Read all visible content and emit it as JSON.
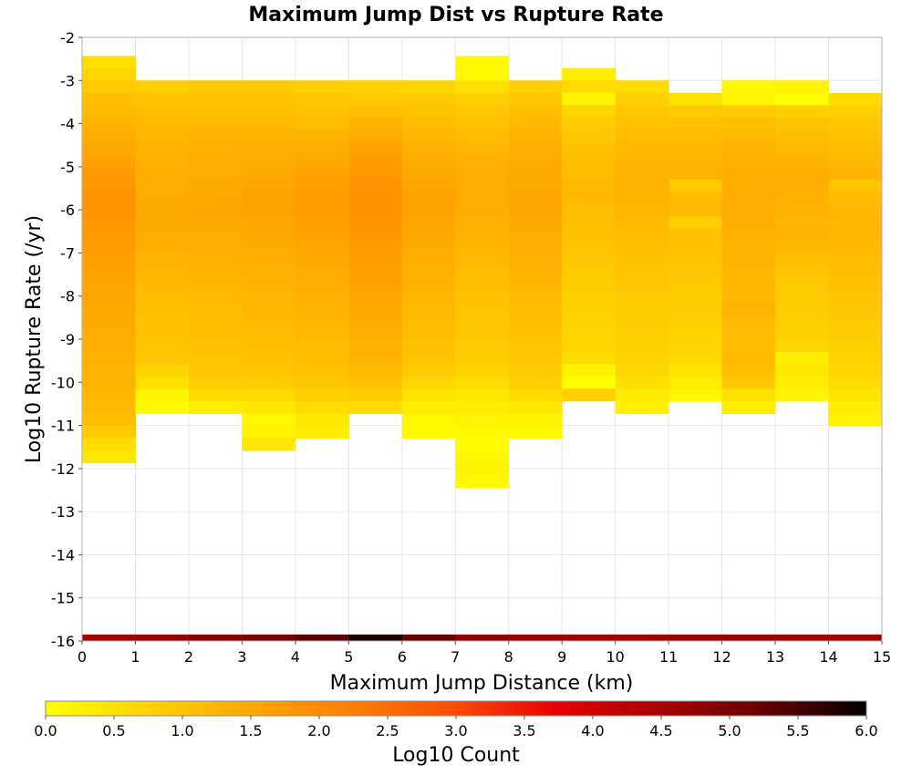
{
  "chart_data": {
    "type": "heatmap",
    "title": "Maximum Jump Dist vs Rupture Rate",
    "xlabel": "Maximum Jump Distance (km)",
    "ylabel": "Log10 Rupture Rate (/yr)",
    "xlim": [
      0,
      15
    ],
    "ylim": [
      -16,
      -2
    ],
    "x_ticks": [
      "0",
      "1",
      "2",
      "3",
      "4",
      "5",
      "6",
      "7",
      "8",
      "9",
      "10",
      "11",
      "12",
      "13",
      "14",
      "15"
    ],
    "y_ticks": [
      "-2",
      "-3",
      "-4",
      "-5",
      "-6",
      "-7",
      "-8",
      "-9",
      "-10",
      "-11",
      "-12",
      "-13",
      "-14",
      "-15",
      "-16"
    ],
    "grid": true,
    "bin_width_x": 1,
    "bin_height_y": 0.286,
    "colorbar": {
      "label": "Log10 Count",
      "range": [
        0,
        6
      ],
      "ticks": [
        "0.0",
        "0.5",
        "1.0",
        "1.5",
        "2.0",
        "2.5",
        "3.0",
        "3.5",
        "4.0",
        "4.5",
        "5.0",
        "5.5",
        "6.0"
      ],
      "stops": [
        "#ffff00",
        "#ffd200",
        "#ffa800",
        "#ff7e00",
        "#ff4a00",
        "#e60000",
        "#a60000",
        "#660000",
        "#000000"
      ],
      "position": "bottom"
    },
    "columns": [
      {
        "x": 0,
        "y_top": -2.43,
        "values": [
          0.55,
          0.7,
          0.9,
          1.1,
          1.2,
          1.3,
          1.4,
          1.5,
          1.6,
          1.75,
          1.8,
          1.85,
          1.85,
          1.8,
          1.75,
          1.7,
          1.65,
          1.6,
          1.55,
          1.55,
          1.5,
          1.5,
          1.45,
          1.4,
          1.35,
          1.3,
          1.3,
          1.25,
          1.2,
          1.1,
          0.9,
          0.55,
          0.4
        ]
      },
      {
        "x": 1,
        "y_top": -3.0,
        "values": [
          0.8,
          1.0,
          1.1,
          1.2,
          1.25,
          1.3,
          1.35,
          1.4,
          1.4,
          1.45,
          1.5,
          1.5,
          1.45,
          1.4,
          1.3,
          1.25,
          1.2,
          1.15,
          1.1,
          1.05,
          1.05,
          1.0,
          0.95,
          0.75,
          0.55,
          0.2,
          0.1
        ]
      },
      {
        "x": 2,
        "y_top": -3.0,
        "values": [
          0.9,
          1.0,
          1.1,
          1.2,
          1.3,
          1.35,
          1.4,
          1.45,
          1.5,
          1.5,
          1.55,
          1.5,
          1.45,
          1.4,
          1.35,
          1.3,
          1.25,
          1.2,
          1.15,
          1.1,
          1.1,
          1.05,
          1.0,
          0.95,
          0.8,
          0.6,
          0.3
        ]
      },
      {
        "x": 3,
        "y_top": -3.0,
        "values": [
          0.9,
          1.0,
          1.1,
          1.2,
          1.3,
          1.4,
          1.45,
          1.5,
          1.55,
          1.6,
          1.6,
          1.55,
          1.5,
          1.45,
          1.4,
          1.35,
          1.3,
          1.25,
          1.25,
          1.2,
          1.15,
          1.1,
          1.05,
          1.0,
          0.85,
          0.65,
          0.4,
          0.15,
          0.2,
          0.4
        ]
      },
      {
        "x": 4,
        "y_top": -3.0,
        "values": [
          0.8,
          0.95,
          1.05,
          1.15,
          1.3,
          1.4,
          1.5,
          1.6,
          1.65,
          1.7,
          1.7,
          1.65,
          1.6,
          1.55,
          1.5,
          1.45,
          1.4,
          1.35,
          1.3,
          1.25,
          1.2,
          1.15,
          1.1,
          1.05,
          0.95,
          0.8,
          0.6,
          0.4,
          0.3
        ]
      },
      {
        "x": 5,
        "y_top": -3.0,
        "values": [
          0.75,
          0.9,
          1.1,
          1.3,
          1.45,
          1.6,
          1.7,
          1.8,
          1.85,
          1.9,
          1.9,
          1.85,
          1.8,
          1.75,
          1.7,
          1.65,
          1.6,
          1.55,
          1.5,
          1.45,
          1.4,
          1.35,
          1.3,
          1.2,
          1.05,
          0.85,
          0.6
        ]
      },
      {
        "x": 6,
        "y_top": -3.0,
        "values": [
          0.7,
          0.9,
          1.0,
          1.15,
          1.25,
          1.35,
          1.45,
          1.5,
          1.55,
          1.6,
          1.6,
          1.55,
          1.5,
          1.45,
          1.4,
          1.35,
          1.3,
          1.25,
          1.2,
          1.15,
          1.1,
          1.05,
          1.0,
          0.9,
          0.7,
          0.45,
          0.3,
          0.15,
          0.1
        ]
      },
      {
        "x": 7,
        "y_top": -2.43,
        "values": [
          0.1,
          0.1,
          0.5,
          0.8,
          0.95,
          1.05,
          1.15,
          1.25,
          1.35,
          1.4,
          1.45,
          1.45,
          1.4,
          1.35,
          1.3,
          1.25,
          1.2,
          1.15,
          1.1,
          1.05,
          1.0,
          0.95,
          0.95,
          0.9,
          0.85,
          0.75,
          0.6,
          0.4,
          0.3,
          0.2,
          0.1,
          0.05,
          0.1,
          0.2,
          0.1
        ]
      },
      {
        "x": 8,
        "y_top": -3.0,
        "values": [
          0.8,
          0.95,
          1.1,
          1.2,
          1.3,
          1.4,
          1.45,
          1.5,
          1.5,
          1.55,
          1.55,
          1.5,
          1.45,
          1.4,
          1.35,
          1.3,
          1.25,
          1.2,
          1.15,
          1.1,
          1.05,
          1.0,
          0.95,
          0.9,
          0.8,
          0.6,
          0.4,
          0.2,
          0.1
        ]
      },
      {
        "x": 9,
        "y_top": -2.71,
        "values": [
          0.3,
          0.6,
          0.2,
          0.7,
          0.85,
          0.95,
          1.05,
          1.1,
          1.15,
          1.2,
          1.2,
          1.15,
          1.1,
          1.05,
          1.0,
          0.95,
          0.9,
          0.85,
          0.8,
          0.8,
          0.75,
          0.7,
          0.7,
          0.6,
          0.2,
          0.01,
          0.8
        ]
      },
      {
        "x": 10,
        "y_top": -3.0,
        "values": [
          0.6,
          0.8,
          0.95,
          1.05,
          1.15,
          1.2,
          1.25,
          1.3,
          1.3,
          1.3,
          1.25,
          1.2,
          1.15,
          1.1,
          1.05,
          1.0,
          0.95,
          0.9,
          0.9,
          0.85,
          0.8,
          0.8,
          0.75,
          0.7,
          0.55,
          0.35,
          0.25
        ]
      },
      {
        "x": 11,
        "y_top": -3.29,
        "values": [
          0.5,
          0.9,
          1.05,
          1.15,
          1.2,
          1.25,
          1.3,
          0.9,
          1.15,
          1.2,
          0.8,
          1.05,
          1.05,
          1.0,
          0.95,
          0.9,
          0.85,
          0.85,
          0.8,
          0.75,
          0.7,
          0.65,
          0.45,
          0.3,
          0.15
        ]
      },
      {
        "x": 12,
        "y_top": -3.0,
        "values": [
          0.15,
          0.2,
          0.9,
          1.1,
          1.2,
          1.3,
          1.35,
          1.4,
          1.4,
          1.45,
          1.45,
          1.4,
          1.35,
          1.3,
          1.3,
          1.25,
          1.25,
          1.2,
          1.3,
          1.2,
          1.15,
          1.1,
          1.2,
          1.1,
          0.95,
          0.5,
          0.3
        ]
      },
      {
        "x": 13,
        "y_top": -3.0,
        "values": [
          0.2,
          0.01,
          0.8,
          1.0,
          1.1,
          1.2,
          1.3,
          1.45,
          1.4,
          1.35,
          1.3,
          1.25,
          1.3,
          1.2,
          1.1,
          1.0,
          0.9,
          0.9,
          0.85,
          0.8,
          0.8,
          0.7,
          0.3,
          0.4,
          0.3,
          0.2
        ]
      },
      {
        "x": 14,
        "y_top": -3.29,
        "values": [
          0.6,
          0.8,
          0.95,
          1.05,
          1.15,
          1.2,
          1.3,
          1.0,
          1.15,
          1.2,
          1.25,
          1.25,
          1.2,
          1.15,
          1.1,
          1.05,
          1.0,
          0.95,
          0.9,
          0.85,
          0.8,
          0.75,
          0.7,
          0.6,
          0.45,
          0.3,
          0.2
        ]
      }
    ],
    "baseline_band": {
      "y": -16,
      "values": [
        4.5,
        4.6,
        4.8,
        5.0,
        5.3,
        5.8,
        5.2,
        4.7,
        4.6,
        4.5,
        4.5,
        4.6,
        4.6,
        4.5,
        4.5
      ]
    }
  }
}
